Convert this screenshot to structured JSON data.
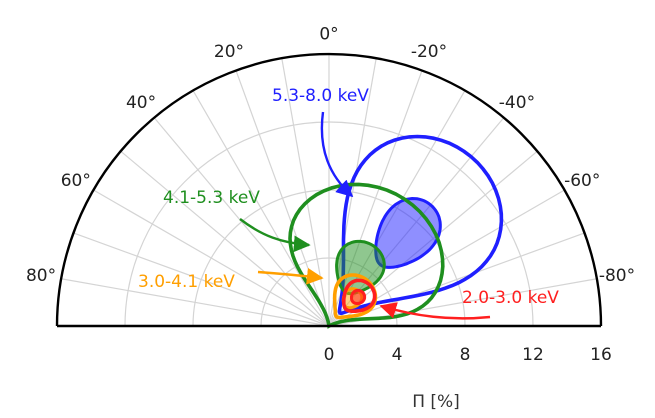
{
  "chart_data": {
    "type": "polar-half",
    "xlabel": "Π [%]",
    "radial_ticks": [
      "0",
      "4",
      "8",
      "12",
      "16"
    ],
    "radial_values": [
      0,
      4,
      8,
      12,
      16
    ],
    "radial_range": [
      0,
      16
    ],
    "angle_ticks": [
      "0°",
      "20°",
      "-20°",
      "40°",
      "-40°",
      "60°",
      "-60°",
      "80°",
      "-80°"
    ],
    "angle_values": [
      0,
      20,
      -20,
      40,
      -40,
      60,
      -60,
      80,
      -80
    ],
    "angle_range": [
      -90,
      90
    ],
    "grid": true,
    "series": [
      {
        "name": "5.3-8.0 keV",
        "color": "#1f1fff",
        "center": {
          "pd": 7.0,
          "pa": -40
        },
        "inner": {
          "r_extent": 2.3,
          "pa_extent": 13,
          "filled": true
        },
        "outer": {
          "r_extent": 6.0,
          "pa_extent": 32,
          "filled": false
        }
      },
      {
        "name": "4.1-5.3 keV",
        "color": "#1f8f1f",
        "center": {
          "pd": 3.8,
          "pa": -27
        },
        "inner": {
          "r_extent": 1.6,
          "pa_extent": 20,
          "filled": true
        },
        "outer": {
          "r_extent": 4.9,
          "pa_extent": 55,
          "filled": false
        }
      },
      {
        "name": "3.0-4.1 keV",
        "color": "#ff9f00",
        "center": {
          "pd": 2.1,
          "pa": -40
        },
        "inner": {
          "r_extent": 0.6,
          "pa_extent": 14,
          "filled": true
        },
        "outer": {
          "r_extent": 1.4,
          "pa_extent": 30,
          "filled": false
        }
      },
      {
        "name": "2.0-3.0 keV",
        "color": "#ff1f1f",
        "center": {
          "pd": 2.4,
          "pa": -45
        },
        "inner": {
          "r_extent": 0.4,
          "pa_extent": 9,
          "filled": true
        },
        "outer": {
          "r_extent": 1.0,
          "pa_extent": 20,
          "filled": false
        }
      }
    ]
  }
}
